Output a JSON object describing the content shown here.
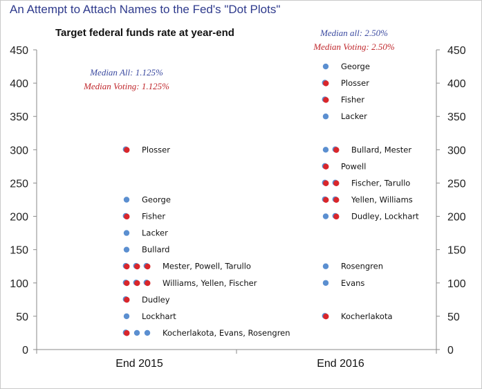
{
  "page_title": "An Attempt to Attach Names to the Fed's \"Dot Plots\"",
  "chart_data": {
    "type": "scatter",
    "title": "Target federal funds rate at year-end",
    "xlabel": "",
    "ylabel": "",
    "categories": [
      "End 2015",
      "End 2016"
    ],
    "ylim": [
      0,
      450
    ],
    "yticks": [
      0,
      50,
      100,
      150,
      200,
      250,
      300,
      350,
      400,
      450
    ],
    "grid": false,
    "colors": {
      "voting": "#d9262b",
      "voting_ring": "#5b8fd0",
      "non_voting": "#5b8fd0"
    },
    "annotations": [
      {
        "category": "End 2015",
        "lines": [
          {
            "text": "Median All: 1.125%",
            "color": "#3b4aa0"
          },
          {
            "text": "Median Voting: 1.125%",
            "color": "#c0282d"
          }
        ]
      },
      {
        "category": "End 2016",
        "lines": [
          {
            "text": "Median all: 2.50%",
            "color": "#3b4aa0"
          },
          {
            "text": "Median Voting: 2.50%",
            "color": "#c0282d"
          }
        ]
      }
    ],
    "groups": [
      {
        "category": "End 2015",
        "y": 300,
        "label": "Plosser",
        "dots": [
          "voting"
        ]
      },
      {
        "category": "End 2015",
        "y": 225,
        "label": "George",
        "dots": [
          "non_voting"
        ]
      },
      {
        "category": "End 2015",
        "y": 200,
        "label": "Fisher",
        "dots": [
          "voting"
        ]
      },
      {
        "category": "End 2015",
        "y": 175,
        "label": "Lacker",
        "dots": [
          "non_voting"
        ]
      },
      {
        "category": "End 2015",
        "y": 150,
        "label": "Bullard",
        "dots": [
          "non_voting"
        ]
      },
      {
        "category": "End 2015",
        "y": 125,
        "label": "Mester, Powell, Tarullo",
        "dots": [
          "voting",
          "voting",
          "voting"
        ]
      },
      {
        "category": "End 2015",
        "y": 100,
        "label": "Williams, Yellen, Fischer",
        "dots": [
          "voting",
          "voting",
          "voting"
        ]
      },
      {
        "category": "End 2015",
        "y": 75,
        "label": "Dudley",
        "dots": [
          "voting"
        ]
      },
      {
        "category": "End 2015",
        "y": 50,
        "label": "Lockhart",
        "dots": [
          "non_voting"
        ]
      },
      {
        "category": "End 2015",
        "y": 25,
        "label": "Kocherlakota, Evans, Rosengren",
        "dots": [
          "voting",
          "non_voting",
          "non_voting"
        ]
      },
      {
        "category": "End 2016",
        "y": 425,
        "label": "George",
        "dots": [
          "non_voting"
        ]
      },
      {
        "category": "End 2016",
        "y": 400,
        "label": "Plosser",
        "dots": [
          "voting"
        ]
      },
      {
        "category": "End 2016",
        "y": 375,
        "label": "Fisher",
        "dots": [
          "voting"
        ]
      },
      {
        "category": "End 2016",
        "y": 350,
        "label": "Lacker",
        "dots": [
          "non_voting"
        ]
      },
      {
        "category": "End 2016",
        "y": 300,
        "label": "Bullard, Mester",
        "dots": [
          "non_voting",
          "voting"
        ]
      },
      {
        "category": "End 2016",
        "y": 275,
        "label": "Powell",
        "dots": [
          "voting"
        ]
      },
      {
        "category": "End 2016",
        "y": 250,
        "label": "Fischer, Tarullo",
        "dots": [
          "voting",
          "voting"
        ]
      },
      {
        "category": "End 2016",
        "y": 225,
        "label": "Yellen, Williams",
        "dots": [
          "voting",
          "voting"
        ]
      },
      {
        "category": "End 2016",
        "y": 200,
        "label": "Dudley, Lockhart",
        "dots": [
          "non_voting",
          "voting"
        ]
      },
      {
        "category": "End 2016",
        "y": 125,
        "label": "Rosengren",
        "dots": [
          "non_voting"
        ]
      },
      {
        "category": "End 2016",
        "y": 100,
        "label": "Evans",
        "dots": [
          "non_voting"
        ]
      },
      {
        "category": "End 2016",
        "y": 50,
        "label": "Kocherlakota",
        "dots": [
          "voting"
        ]
      }
    ]
  }
}
